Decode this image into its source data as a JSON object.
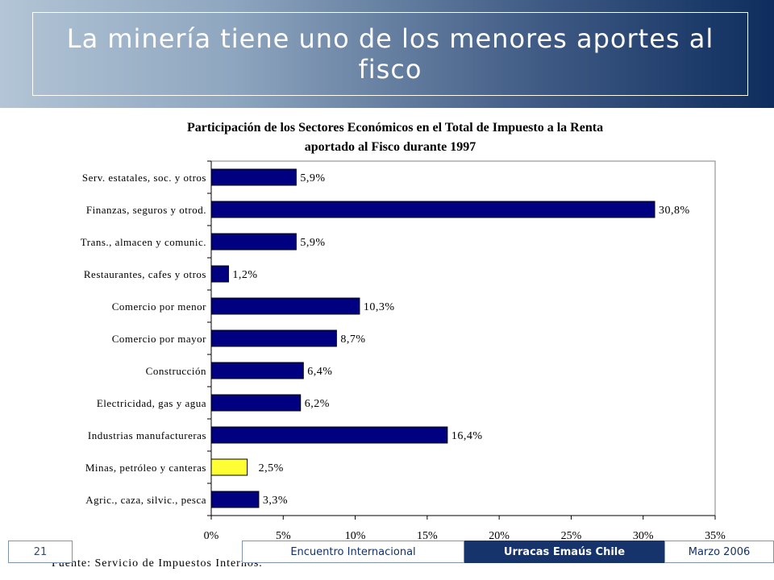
{
  "slide": {
    "title": "La minería tiene uno de los menores aportes al fisco",
    "source": "Fuente: Servicio de Impuestos Internos."
  },
  "footer": {
    "page_number": "21",
    "event": "Encuentro Internacional",
    "organization": "Urracas Emaús Chile",
    "date": "Marzo 2006"
  },
  "colors": {
    "bar": "#000080",
    "highlight": "#ffff33",
    "header_dark": "#0e2d5e",
    "footer_dark": "#16336b"
  },
  "chart_data": {
    "type": "bar",
    "orientation": "horizontal",
    "title_lines": [
      "Participación de los Sectores Económicos en el Total de Impuesto a la Renta",
      "aportado al Fisco durante  1997"
    ],
    "categories": [
      "Serv. estatales, soc. y otros",
      "Finanzas, seguros y otrod.",
      "Trans., almacen y comunic.",
      "Restaurantes, cafes y otros",
      "Comercio por menor",
      "Comercio por mayor",
      "Construcción",
      "Electricidad, gas y agua",
      "Industrias manufactureras",
      "Minas, petróleo y canteras",
      "Agric., caza, silvic., pesca"
    ],
    "values": [
      5.9,
      30.8,
      5.9,
      1.2,
      10.3,
      8.7,
      6.4,
      6.2,
      16.4,
      2.5,
      3.3
    ],
    "value_labels": [
      "5,9%",
      "30,8%",
      "5,9%",
      "1,2%",
      "10,3%",
      "8,7%",
      "6,4%",
      "6,2%",
      "16,4%",
      "2,5%",
      "3,3%"
    ],
    "highlight_category": "Minas, petróleo y canteras",
    "xlim": [
      0,
      35
    ],
    "xticks": [
      0,
      5,
      10,
      15,
      20,
      25,
      30,
      35
    ],
    "xtick_labels": [
      "0%",
      "5%",
      "10%",
      "15%",
      "20%",
      "25%",
      "30%",
      "35%"
    ],
    "grid": false,
    "legend": "none"
  }
}
